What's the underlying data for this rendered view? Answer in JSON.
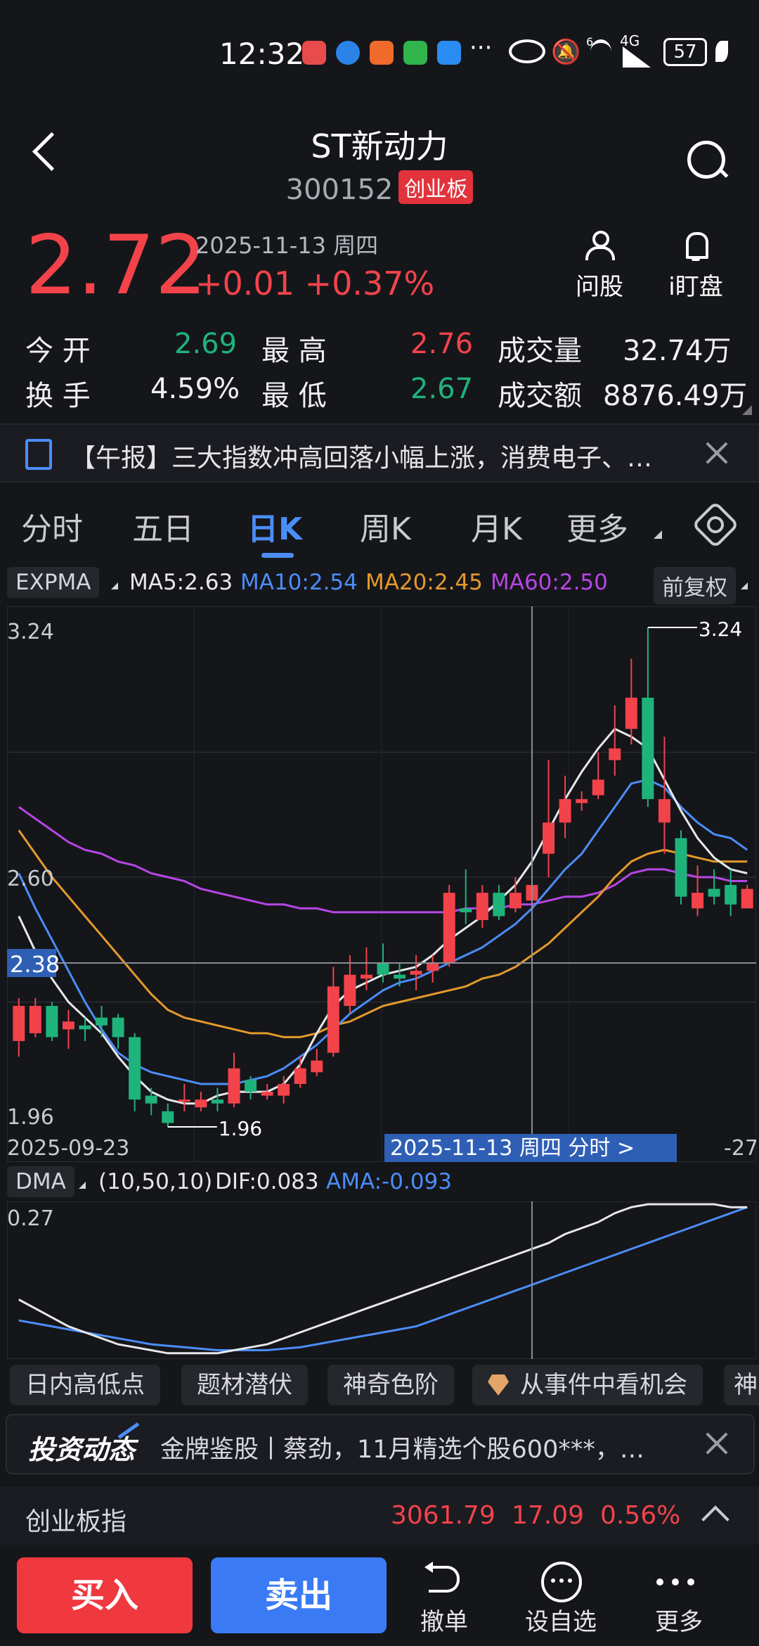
{
  "status_bar": {
    "time": "12:32",
    "network": "4G",
    "wifi_badge": "6",
    "battery": "57",
    "more": "···"
  },
  "header": {
    "title": "ST新动力",
    "code": "300152",
    "board_badge": "创业板"
  },
  "quote": {
    "price": "2.72",
    "date": "2025-11-13 周四",
    "change": "+0.01",
    "change_pct": "+0.37%",
    "ask_label": "问股",
    "watch_label": "i盯盘"
  },
  "stats": {
    "open_label": "今 开",
    "open": "2.69",
    "high_label": "最 高",
    "high": "2.76",
    "volume_label": "成交量",
    "volume": "32.74万",
    "turnover_label": "换 手",
    "turnover": "4.59%",
    "low_label": "最 低",
    "low": "2.67",
    "amount_label": "成交额",
    "amount": "8876.49万"
  },
  "news": {
    "text": "【午报】三大指数冲高回落小幅上涨，消费电子、…"
  },
  "tabs": [
    "分时",
    "五日",
    "日K",
    "周K",
    "月K",
    "更多"
  ],
  "active_tab": "日K",
  "indicator": {
    "main": "EXPMA",
    "ma5": "MA5:2.63",
    "ma10": "MA10:2.54",
    "ma20": "MA20:2.45",
    "ma60": "MA60:2.50",
    "adjust": "前复权"
  },
  "colors": {
    "up": "#f2434a",
    "down": "#1fb37c",
    "ma5": "#e8e8ea",
    "ma10": "#4b8df8",
    "ma20": "#e49a2b",
    "ma60": "#b646e6",
    "accent": "#4b8df8"
  },
  "chart_data": {
    "type": "candlestick",
    "ylim": [
      1.96,
      3.24
    ],
    "y_ticks": [
      "3.24",
      "2.60",
      "1.96"
    ],
    "crosshair_price": "2.38",
    "max_label": "3.24",
    "min_label": "1.96",
    "x_start_label": "2025-09-23",
    "x_end_label": "-27",
    "crosshair_date_label": "2025-11-13 周四  分时 >",
    "candles": [
      {
        "o": 2.18,
        "c": 2.27,
        "h": 2.29,
        "l": 2.14
      },
      {
        "o": 2.2,
        "c": 2.27,
        "h": 2.29,
        "l": 2.19
      },
      {
        "o": 2.27,
        "c": 2.19,
        "h": 2.28,
        "l": 2.18
      },
      {
        "o": 2.21,
        "c": 2.23,
        "h": 2.26,
        "l": 2.16
      },
      {
        "o": 2.22,
        "c": 2.21,
        "h": 2.24,
        "l": 2.18
      },
      {
        "o": 2.24,
        "c": 2.22,
        "h": 2.27,
        "l": 2.19
      },
      {
        "o": 2.24,
        "c": 2.19,
        "h": 2.25,
        "l": 2.16
      },
      {
        "o": 2.19,
        "c": 2.03,
        "h": 2.2,
        "l": 2.0
      },
      {
        "o": 2.04,
        "c": 2.02,
        "h": 2.06,
        "l": 1.99
      },
      {
        "o": 2.0,
        "c": 1.97,
        "h": 2.02,
        "l": 1.96
      },
      {
        "o": 2.03,
        "c": 2.03,
        "h": 2.07,
        "l": 2.0
      },
      {
        "o": 2.01,
        "c": 2.03,
        "h": 2.05,
        "l": 2.0
      },
      {
        "o": 2.03,
        "c": 2.02,
        "h": 2.06,
        "l": 2.0
      },
      {
        "o": 2.02,
        "c": 2.11,
        "h": 2.15,
        "l": 2.01
      },
      {
        "o": 2.08,
        "c": 2.05,
        "h": 2.09,
        "l": 2.03
      },
      {
        "o": 2.04,
        "c": 2.05,
        "h": 2.07,
        "l": 2.03
      },
      {
        "o": 2.04,
        "c": 2.07,
        "h": 2.09,
        "l": 2.02
      },
      {
        "o": 2.07,
        "c": 2.11,
        "h": 2.14,
        "l": 2.06
      },
      {
        "o": 2.1,
        "c": 2.13,
        "h": 2.16,
        "l": 2.09
      },
      {
        "o": 2.15,
        "c": 2.32,
        "h": 2.37,
        "l": 2.14
      },
      {
        "o": 2.27,
        "c": 2.35,
        "h": 2.4,
        "l": 2.25
      },
      {
        "o": 2.34,
        "c": 2.35,
        "h": 2.42,
        "l": 2.31
      },
      {
        "o": 2.38,
        "c": 2.35,
        "h": 2.43,
        "l": 2.33
      },
      {
        "o": 2.35,
        "c": 2.34,
        "h": 2.38,
        "l": 2.32
      },
      {
        "o": 2.35,
        "c": 2.36,
        "h": 2.4,
        "l": 2.31
      },
      {
        "o": 2.36,
        "c": 2.38,
        "h": 2.4,
        "l": 2.33
      },
      {
        "o": 2.38,
        "c": 2.56,
        "h": 2.58,
        "l": 2.37
      },
      {
        "o": 2.52,
        "c": 2.51,
        "h": 2.62,
        "l": 2.48
      },
      {
        "o": 2.49,
        "c": 2.56,
        "h": 2.58,
        "l": 2.47
      },
      {
        "o": 2.56,
        "c": 2.5,
        "h": 2.58,
        "l": 2.49
      },
      {
        "o": 2.52,
        "c": 2.56,
        "h": 2.6,
        "l": 2.51
      },
      {
        "o": 2.54,
        "c": 2.58,
        "h": 2.58,
        "l": 2.53
      },
      {
        "o": 2.66,
        "c": 2.74,
        "h": 2.9,
        "l": 2.6
      },
      {
        "o": 2.74,
        "c": 2.8,
        "h": 2.86,
        "l": 2.7
      },
      {
        "o": 2.79,
        "c": 2.8,
        "h": 2.82,
        "l": 2.77
      },
      {
        "o": 2.81,
        "c": 2.85,
        "h": 2.92,
        "l": 2.8
      },
      {
        "o": 2.9,
        "c": 2.93,
        "h": 3.04,
        "l": 2.86
      },
      {
        "o": 2.98,
        "c": 3.06,
        "h": 3.16,
        "l": 2.94
      },
      {
        "o": 3.06,
        "c": 2.8,
        "h": 3.24,
        "l": 2.78
      },
      {
        "o": 2.74,
        "c": 2.8,
        "h": 2.96,
        "l": 2.66
      },
      {
        "o": 2.7,
        "c": 2.55,
        "h": 2.72,
        "l": 2.53
      },
      {
        "o": 2.52,
        "c": 2.56,
        "h": 2.63,
        "l": 2.5
      },
      {
        "o": 2.57,
        "c": 2.55,
        "h": 2.62,
        "l": 2.53
      },
      {
        "o": 2.58,
        "c": 2.53,
        "h": 2.62,
        "l": 2.5
      },
      {
        "o": 2.52,
        "c": 2.57,
        "h": 2.58,
        "l": 2.53
      }
    ],
    "series": [
      {
        "name": "MA60",
        "color": "#b646e6",
        "values": [
          2.78,
          2.75,
          2.72,
          2.69,
          2.67,
          2.66,
          2.64,
          2.63,
          2.61,
          2.6,
          2.59,
          2.57,
          2.56,
          2.55,
          2.54,
          2.53,
          2.53,
          2.52,
          2.52,
          2.51,
          2.51,
          2.51,
          2.51,
          2.51,
          2.51,
          2.51,
          2.51,
          2.52,
          2.52,
          2.52,
          2.53,
          2.53,
          2.54,
          2.55,
          2.55,
          2.56,
          2.58,
          2.61,
          2.62,
          2.62,
          2.61,
          2.6,
          2.6,
          2.59,
          2.59
        ]
      },
      {
        "name": "MA20",
        "color": "#e49a2b",
        "values": [
          2.72,
          2.66,
          2.6,
          2.55,
          2.5,
          2.45,
          2.4,
          2.35,
          2.3,
          2.26,
          2.24,
          2.23,
          2.22,
          2.21,
          2.2,
          2.2,
          2.19,
          2.19,
          2.2,
          2.22,
          2.23,
          2.25,
          2.27,
          2.28,
          2.29,
          2.3,
          2.31,
          2.32,
          2.34,
          2.35,
          2.37,
          2.4,
          2.43,
          2.47,
          2.51,
          2.55,
          2.6,
          2.64,
          2.66,
          2.67,
          2.66,
          2.65,
          2.64,
          2.64,
          2.64
        ]
      },
      {
        "name": "MA10",
        "color": "#4b8df8",
        "values": [
          2.61,
          2.52,
          2.44,
          2.36,
          2.28,
          2.21,
          2.15,
          2.12,
          2.1,
          2.09,
          2.08,
          2.07,
          2.07,
          2.07,
          2.08,
          2.09,
          2.11,
          2.14,
          2.17,
          2.21,
          2.25,
          2.28,
          2.31,
          2.33,
          2.34,
          2.36,
          2.38,
          2.4,
          2.42,
          2.45,
          2.48,
          2.52,
          2.57,
          2.62,
          2.66,
          2.72,
          2.78,
          2.84,
          2.85,
          2.83,
          2.78,
          2.74,
          2.71,
          2.7,
          2.67
        ]
      },
      {
        "name": "MA5",
        "color": "#e8e8ea",
        "values": [
          2.5,
          2.41,
          2.34,
          2.28,
          2.24,
          2.2,
          2.14,
          2.09,
          2.05,
          2.03,
          2.02,
          2.02,
          2.04,
          2.05,
          2.05,
          2.05,
          2.07,
          2.12,
          2.2,
          2.27,
          2.31,
          2.33,
          2.35,
          2.36,
          2.37,
          2.4,
          2.44,
          2.47,
          2.5,
          2.54,
          2.58,
          2.64,
          2.72,
          2.8,
          2.87,
          2.93,
          2.98,
          2.96,
          2.93,
          2.85,
          2.77,
          2.7,
          2.65,
          2.62,
          2.61
        ]
      }
    ],
    "crosshair_index": 31
  },
  "dma": {
    "label": "DMA",
    "params": "(10,50,10)",
    "dif": "DIF:0.083",
    "ama": "AMA:-0.093",
    "top_tick": "0.27",
    "dif_values": [
      -0.05,
      -0.08,
      -0.11,
      -0.14,
      -0.16,
      -0.18,
      -0.2,
      -0.21,
      -0.22,
      -0.23,
      -0.23,
      -0.23,
      -0.23,
      -0.22,
      -0.21,
      -0.2,
      -0.18,
      -0.16,
      -0.14,
      -0.12,
      -0.1,
      -0.08,
      -0.06,
      -0.04,
      -0.02,
      0.0,
      0.02,
      0.04,
      0.06,
      0.08,
      0.1,
      0.12,
      0.14,
      0.17,
      0.19,
      0.21,
      0.24,
      0.26,
      0.27,
      0.27,
      0.27,
      0.27,
      0.27,
      0.26,
      0.26
    ],
    "ama_values": [
      -0.12,
      -0.13,
      -0.14,
      -0.15,
      -0.16,
      -0.17,
      -0.18,
      -0.19,
      -0.2,
      -0.205,
      -0.21,
      -0.215,
      -0.22,
      -0.22,
      -0.22,
      -0.22,
      -0.215,
      -0.21,
      -0.2,
      -0.19,
      -0.18,
      -0.17,
      -0.16,
      -0.15,
      -0.14,
      -0.12,
      -0.1,
      -0.08,
      -0.06,
      -0.04,
      -0.02,
      0.0,
      0.02,
      0.04,
      0.06,
      0.08,
      0.1,
      0.12,
      0.14,
      0.16,
      0.18,
      0.2,
      0.22,
      0.24,
      0.26
    ],
    "ylim": [
      -0.24,
      0.27
    ]
  },
  "chips": [
    "日内高低点",
    "题材潜伏",
    "神奇色阶",
    "从事件中看机会",
    "神"
  ],
  "invest": {
    "brand": "投资动态",
    "text": "金牌鉴股丨蔡劲，11月精选个股600***，…"
  },
  "index_row": {
    "name": "创业板指",
    "value": "3061.79",
    "change": "17.09",
    "pct": "0.56%"
  },
  "bottom": {
    "buy": "买入",
    "sell": "卖出",
    "cancel": "撤单",
    "watch": "设自选",
    "more": "更多"
  }
}
